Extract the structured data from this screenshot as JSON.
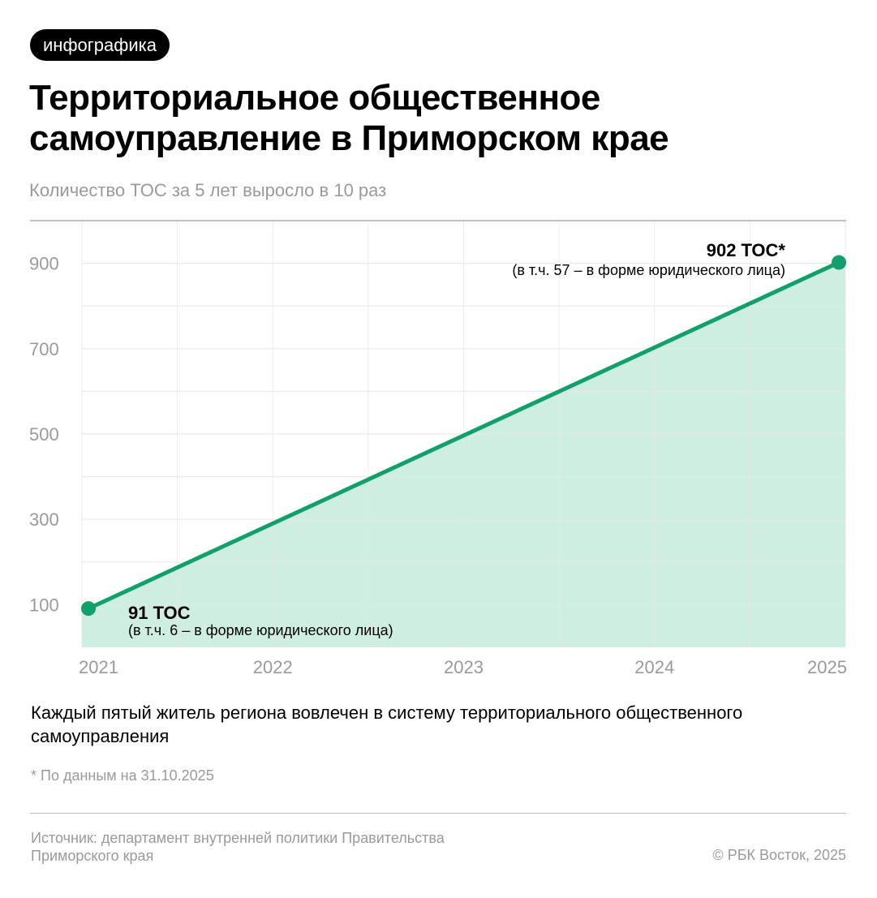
{
  "badge": "инфографика",
  "title": "Территориальное общественное самоуправление в Приморском крае",
  "subtitle": "Количество ТОС за 5 лет выросло в 10 раз",
  "note": "Каждый пятый житель региона вовлечен в систему территориального общественного самоуправления",
  "footnote": "*  По данным на 31.10.2025",
  "source": "Источник: департамент внутренней политики Правительства Приморского края",
  "copyright": "© РБК Восток, 2025",
  "chart_data": {
    "type": "area",
    "title": "",
    "xlabel": "",
    "ylabel": "",
    "x": [
      2021,
      2025
    ],
    "values": [
      91,
      902
    ],
    "x_ticks": [
      "2021",
      "2022",
      "2023",
      "2024",
      "2025"
    ],
    "y_ticks": [
      "100",
      "300",
      "500",
      "700",
      "900"
    ],
    "xlim": [
      2021,
      2025
    ],
    "ylim": [
      0,
      1000
    ],
    "grid": true,
    "annotations": [
      {
        "x": 2021,
        "label": "91 ТОС",
        "sub": "(в т.ч. 6 – в форме юридического лица)"
      },
      {
        "x": 2025,
        "label": "902 ТОС*",
        "sub": "(в т.ч. 57 – в форме юридического лица)"
      }
    ],
    "colors": {
      "line": "#12a06a",
      "fill": "#cdeee0",
      "grid": "#e8e8e8"
    }
  }
}
